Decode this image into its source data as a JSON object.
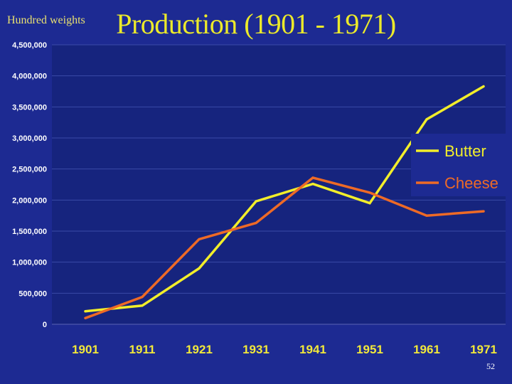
{
  "slide": {
    "units_label": "Hundred weights",
    "title": "Production (1901 - 1971)",
    "slide_number": "52"
  },
  "colors": {
    "background": "#1d2a92",
    "plot_area": "#16247e",
    "title": "#ecea2a",
    "butter": "#f2ee2a",
    "cheese": "#ee6a26",
    "x_tick": "#f2e83a"
  },
  "chart_data": {
    "type": "line",
    "title": "Production (1901 - 1971)",
    "ylabel": "Hundred weights",
    "xlabel": "",
    "categories": [
      "1901",
      "1911",
      "1921",
      "1931",
      "1941",
      "1951",
      "1961",
      "1971"
    ],
    "y_ticks": [
      "0",
      "500,000",
      "1,000,000",
      "1,500,000",
      "2,000,000",
      "2,500,000",
      "3,000,000",
      "3,500,000",
      "4,000,000",
      "4,500,000"
    ],
    "ylim": [
      0,
      4500000
    ],
    "grid": true,
    "legend_position": "right",
    "series": [
      {
        "name": "Butter",
        "color": "#f2ee2a",
        "values": [
          210000,
          300000,
          900000,
          1980000,
          2260000,
          1950000,
          3300000,
          3830000
        ]
      },
      {
        "name": "Cheese",
        "color": "#ee6a26",
        "values": [
          100000,
          440000,
          1370000,
          1630000,
          2360000,
          2120000,
          1750000,
          1820000
        ]
      }
    ]
  }
}
